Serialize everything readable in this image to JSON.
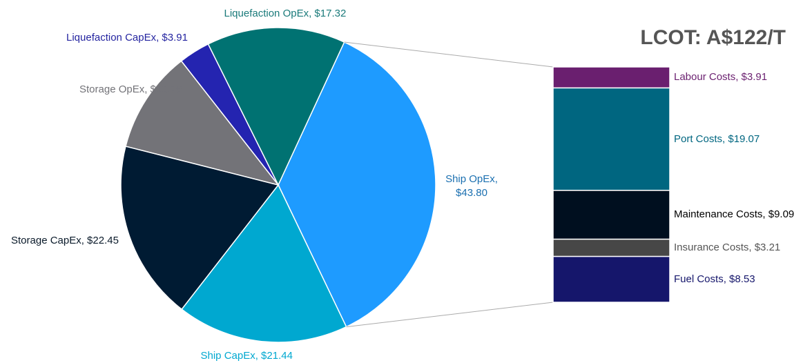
{
  "chart_data": [
    {
      "type": "pie",
      "title": "LCOT: A$122/T",
      "values": [
        43.8,
        21.44,
        22.45,
        12.76,
        3.91,
        17.32
      ],
      "value_labels": [
        "Ship OpEx, $43.80",
        "Ship CapEx, $21.44",
        "Storage CapEx, $22.45",
        "Storage OpEx, $12.76",
        "Liquefaction CapEx, $3.91",
        "Liquefaction OpEx, $17.32"
      ],
      "colors": [
        "#1e9bff",
        "#00a8d0",
        "#001b33",
        "#737378",
        "#2424b0",
        "#007272"
      ],
      "label_colors": [
        "#1a6fb0",
        "#00a8d0",
        "#0a1a2a",
        "#737378",
        "#2424a0",
        "#1a7a7a"
      ]
    },
    {
      "type": "stacked_bar",
      "values": [
        3.91,
        19.07,
        9.09,
        3.21,
        8.53
      ],
      "value_labels": [
        "Labour Costs, $3.91",
        "Port Costs, $19.07",
        "Maintenance Costs, $9.09",
        "Insurance Costs, $3.21",
        "Fuel Costs, $8.53"
      ],
      "colors": [
        "#6a1f6f",
        "#006680",
        "#000f1f",
        "#474747",
        "#15166b"
      ],
      "label_colors": [
        "#6a1f6f",
        "#006680",
        "#000000",
        "#555555",
        "#15166b"
      ]
    }
  ]
}
